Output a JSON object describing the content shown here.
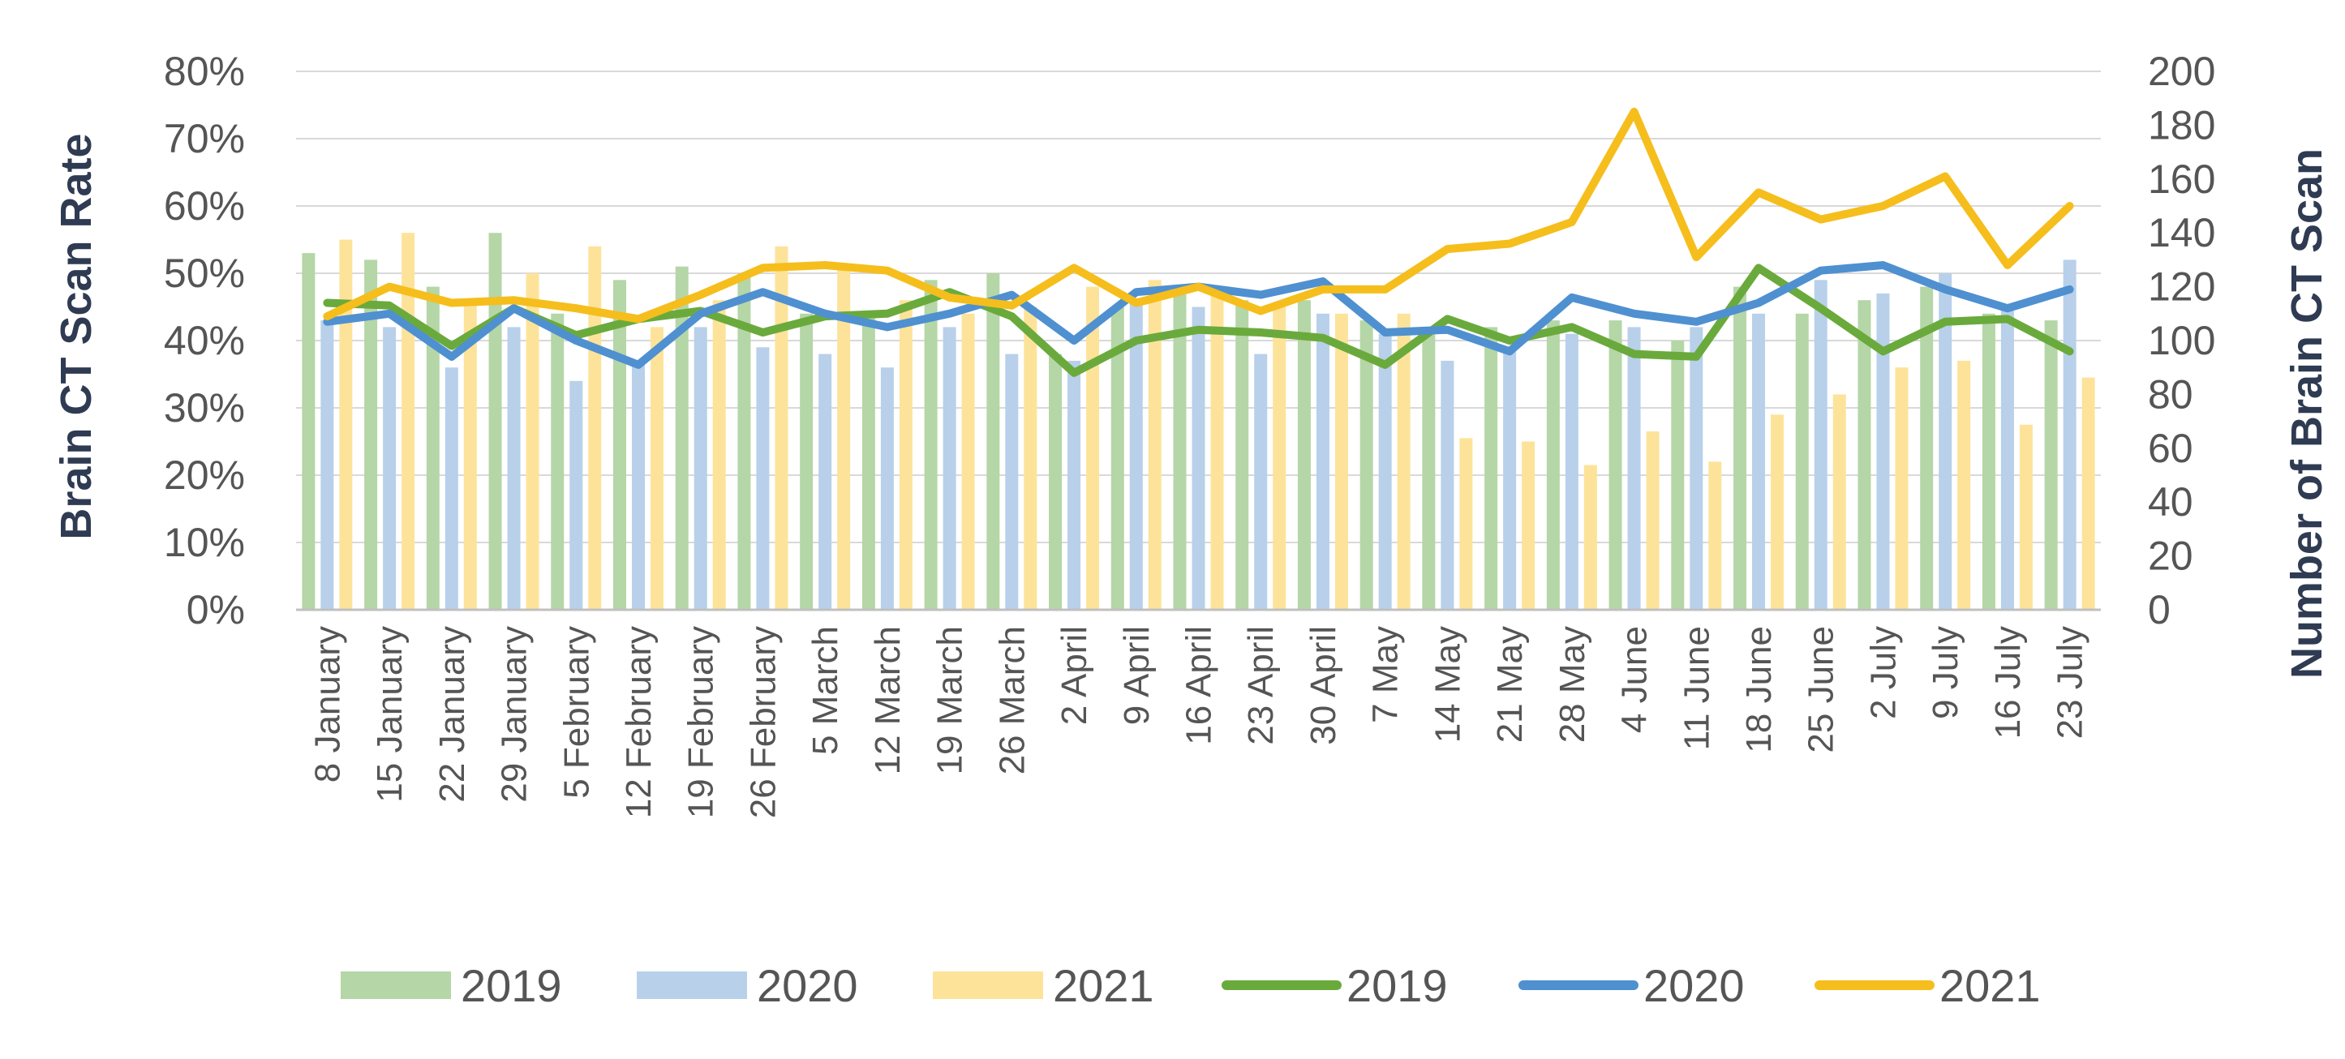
{
  "chart_data": {
    "type": "bar+line",
    "title": "",
    "xlabel": "",
    "ylabel_left": "Brain CT Scan Rate",
    "ylabel_right": "Number of  Brain CT Scan",
    "ylim_left": [
      0,
      80
    ],
    "ylim_right": [
      0,
      200
    ],
    "yticks_left": [
      "0%",
      "10%",
      "20%",
      "30%",
      "40%",
      "50%",
      "60%",
      "70%",
      "80%"
    ],
    "yticks_right": [
      "0",
      "20",
      "40",
      "60",
      "80",
      "100",
      "120",
      "140",
      "160",
      "180",
      "200"
    ],
    "grid": true,
    "legend_position": "bottom",
    "categories": [
      "8 January",
      "15 January",
      "22 January",
      "29 January",
      "5 February",
      "12 February",
      "19 February",
      "26 February",
      "5 March",
      "12 March",
      "19 March",
      "26 March",
      "2 April",
      "9 April",
      "16 April",
      "23 April",
      "30 April",
      "7 May",
      "14 May",
      "21 May",
      "28 May",
      "4 June",
      "11 June",
      "18 June",
      "25 June",
      "2 July",
      "9 July",
      "16 July",
      "23 July"
    ],
    "bar_series": [
      {
        "name": "2019",
        "axis": "left",
        "color": "#b5d6a7",
        "values": [
          53,
          52,
          48,
          56,
          44,
          49,
          51,
          50,
          44,
          44,
          49,
          50,
          38,
          45,
          47,
          46,
          46,
          43,
          41,
          42,
          43,
          43,
          40,
          48,
          44,
          46,
          48,
          44,
          43
        ]
      },
      {
        "name": "2020",
        "axis": "left",
        "color": "#b8d0ea",
        "values": [
          43,
          42,
          36,
          42,
          34,
          37,
          42,
          39,
          38,
          36,
          42,
          38,
          37,
          46,
          45,
          38,
          44,
          41,
          37,
          39,
          41,
          42,
          42,
          44,
          49,
          47,
          50,
          45,
          52
        ]
      },
      {
        "name": "2021",
        "axis": "left",
        "color": "#fde39a",
        "values": [
          55,
          56,
          46,
          50,
          54,
          42,
          46,
          54,
          51,
          46,
          44,
          45,
          48,
          49,
          47,
          45,
          44,
          44,
          25.5,
          25,
          21.5,
          26.5,
          22,
          29,
          32,
          36,
          37,
          27.5,
          34.5
        ]
      }
    ],
    "line_series": [
      {
        "name": "2019",
        "axis": "right",
        "color": "#6aaa3c",
        "values": [
          114,
          113,
          98,
          112,
          102,
          108,
          111,
          103,
          109,
          110,
          118,
          109,
          88,
          100,
          104,
          103,
          101,
          91,
          108,
          100,
          105,
          95,
          94,
          127,
          112,
          96,
          107,
          108,
          96
        ]
      },
      {
        "name": "2020",
        "axis": "right",
        "color": "#4f90d0",
        "values": [
          107,
          110,
          94,
          112,
          100,
          91,
          110,
          118,
          110,
          105,
          110,
          117,
          100,
          118,
          120,
          117,
          122,
          103,
          104,
          96,
          116,
          110,
          107,
          114,
          126,
          128,
          119,
          112,
          119
        ]
      },
      {
        "name": "2021",
        "axis": "right",
        "color": "#f5be1c",
        "values": [
          109,
          120,
          114,
          115,
          112,
          108,
          117,
          127,
          128,
          126,
          116,
          113,
          127,
          114,
          120,
          111,
          119,
          119,
          134,
          136,
          144,
          185,
          131,
          155,
          145,
          150,
          161,
          128,
          150
        ]
      }
    ],
    "legend": [
      {
        "label": "2019",
        "style": "bar",
        "color": "#b5d6a7"
      },
      {
        "label": "2020",
        "style": "bar",
        "color": "#b8d0ea"
      },
      {
        "label": "2021",
        "style": "bar",
        "color": "#fde39a"
      },
      {
        "label": "2019",
        "style": "line",
        "color": "#6aaa3c"
      },
      {
        "label": "2020",
        "style": "line",
        "color": "#4f90d0"
      },
      {
        "label": "2021",
        "style": "line",
        "color": "#f5be1c"
      }
    ]
  }
}
